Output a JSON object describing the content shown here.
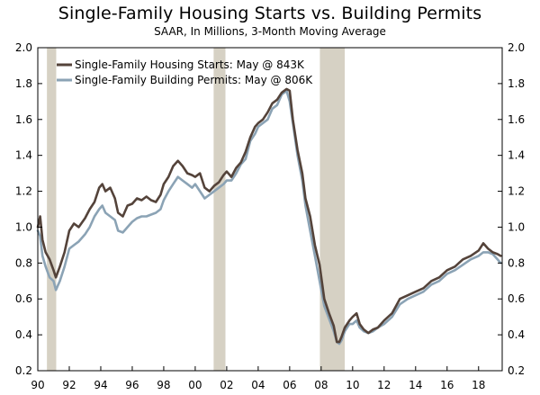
{
  "chart_data": {
    "type": "line",
    "title": "Single-Family Housing Starts vs. Building Permits",
    "subtitle": "SAAR, In Millions, 3-Month Moving Average",
    "xlabel": "",
    "ylabel": "",
    "xlim": [
      1990,
      2019.5
    ],
    "ylim": [
      0.2,
      2.0
    ],
    "y_ticks": [
      0.2,
      0.4,
      0.6,
      0.8,
      1.0,
      1.2,
      1.4,
      1.6,
      1.8,
      2.0
    ],
    "y_tick_labels": [
      "0.2",
      "0.4",
      "0.6",
      "0.8",
      "1.0",
      "1.2",
      "1.4",
      "1.6",
      "1.8",
      "2.0"
    ],
    "x_ticks": [
      1990,
      1992,
      1994,
      1996,
      1998,
      2000,
      2002,
      2004,
      2006,
      2008,
      2010,
      2012,
      2014,
      2016,
      2018
    ],
    "x_tick_labels": [
      "90",
      "92",
      "94",
      "96",
      "98",
      "00",
      "02",
      "04",
      "06",
      "08",
      "10",
      "12",
      "14",
      "16",
      "18"
    ],
    "grid": false,
    "legend_position": "top-left",
    "recessions": [
      [
        1990.58,
        1991.17
      ],
      [
        2001.17,
        2001.92
      ],
      [
        2007.92,
        2009.5
      ]
    ],
    "colors": {
      "starts": "#54433a",
      "permits": "#8ba3b5",
      "recession": "#d6d1c4"
    },
    "series": [
      {
        "name": "Single-Family Housing Starts: May @ 843K",
        "x": [
          1990,
          1990.15,
          1990.3,
          1990.5,
          1990.75,
          1991,
          1991.15,
          1991.4,
          1991.7,
          1992,
          1992.3,
          1992.6,
          1993,
          1993.3,
          1993.6,
          1993.9,
          1994.1,
          1994.3,
          1994.6,
          1994.9,
          1995.1,
          1995.4,
          1995.7,
          1996,
          1996.3,
          1996.6,
          1996.9,
          1997.2,
          1997.5,
          1997.8,
          1998,
          1998.3,
          1998.6,
          1998.9,
          1999.2,
          1999.5,
          1999.8,
          2000,
          2000.3,
          2000.6,
          2000.9,
          2001.2,
          2001.5,
          2001.8,
          2002,
          2002.3,
          2002.6,
          2002.9,
          2003.2,
          2003.5,
          2003.8,
          2004,
          2004.3,
          2004.6,
          2004.9,
          2005.2,
          2005.5,
          2005.8,
          2006,
          2006.2,
          2006.5,
          2006.8,
          2007,
          2007.3,
          2007.6,
          2007.9,
          2008.2,
          2008.5,
          2008.8,
          2009,
          2009.15,
          2009.3,
          2009.5,
          2009.8,
          2010,
          2010.25,
          2010.45,
          2010.7,
          2011,
          2011.3,
          2011.6,
          2012,
          2012.5,
          2013,
          2013.5,
          2014,
          2014.5,
          2015,
          2015.5,
          2016,
          2016.5,
          2017,
          2017.5,
          2018,
          2018.3,
          2018.6,
          2018.9,
          2019.2,
          2019.4
        ],
        "values": [
          1.0,
          1.06,
          0.93,
          0.86,
          0.82,
          0.76,
          0.72,
          0.78,
          0.86,
          0.98,
          1.02,
          1.0,
          1.05,
          1.1,
          1.14,
          1.22,
          1.24,
          1.2,
          1.22,
          1.16,
          1.08,
          1.06,
          1.12,
          1.13,
          1.16,
          1.15,
          1.17,
          1.15,
          1.14,
          1.18,
          1.24,
          1.28,
          1.34,
          1.37,
          1.34,
          1.3,
          1.29,
          1.28,
          1.3,
          1.22,
          1.2,
          1.23,
          1.25,
          1.29,
          1.31,
          1.28,
          1.33,
          1.36,
          1.42,
          1.5,
          1.56,
          1.58,
          1.6,
          1.64,
          1.69,
          1.71,
          1.75,
          1.77,
          1.76,
          1.6,
          1.43,
          1.3,
          1.16,
          1.06,
          0.9,
          0.79,
          0.6,
          0.52,
          0.45,
          0.36,
          0.36,
          0.39,
          0.44,
          0.48,
          0.5,
          0.52,
          0.46,
          0.43,
          0.41,
          0.43,
          0.44,
          0.48,
          0.52,
          0.6,
          0.62,
          0.64,
          0.66,
          0.7,
          0.72,
          0.76,
          0.78,
          0.82,
          0.84,
          0.87,
          0.91,
          0.88,
          0.86,
          0.85,
          0.84
        ]
      },
      {
        "name": "Single-Family Building Permits: May @ 806K",
        "x": [
          1990,
          1990.15,
          1990.3,
          1990.5,
          1990.75,
          1991,
          1991.15,
          1991.4,
          1991.7,
          1992,
          1992.3,
          1992.6,
          1993,
          1993.3,
          1993.6,
          1993.9,
          1994.1,
          1994.3,
          1994.6,
          1994.9,
          1995.1,
          1995.4,
          1995.7,
          1996,
          1996.3,
          1996.6,
          1996.9,
          1997.2,
          1997.5,
          1997.8,
          1998,
          1998.3,
          1998.6,
          1998.9,
          1999.2,
          1999.5,
          1999.8,
          2000,
          2000.3,
          2000.6,
          2000.9,
          2001.2,
          2001.5,
          2001.8,
          2002,
          2002.3,
          2002.6,
          2002.9,
          2003.2,
          2003.5,
          2003.8,
          2004,
          2004.3,
          2004.6,
          2004.9,
          2005.2,
          2005.5,
          2005.8,
          2006,
          2006.2,
          2006.5,
          2006.8,
          2007,
          2007.3,
          2007.6,
          2007.9,
          2008.2,
          2008.5,
          2008.8,
          2009,
          2009.15,
          2009.3,
          2009.5,
          2009.8,
          2010,
          2010.25,
          2010.45,
          2010.7,
          2011,
          2011.3,
          2011.6,
          2012,
          2012.5,
          2013,
          2013.5,
          2014,
          2014.5,
          2015,
          2015.5,
          2016,
          2016.5,
          2017,
          2017.5,
          2018,
          2018.3,
          2018.6,
          2018.9,
          2019.2,
          2019.4
        ],
        "values": [
          0.98,
          0.95,
          0.84,
          0.78,
          0.72,
          0.7,
          0.65,
          0.7,
          0.78,
          0.88,
          0.9,
          0.92,
          0.96,
          1.0,
          1.06,
          1.1,
          1.12,
          1.08,
          1.06,
          1.04,
          0.98,
          0.97,
          1.0,
          1.03,
          1.05,
          1.06,
          1.06,
          1.07,
          1.08,
          1.1,
          1.15,
          1.2,
          1.24,
          1.28,
          1.26,
          1.24,
          1.22,
          1.24,
          1.2,
          1.16,
          1.18,
          1.2,
          1.22,
          1.24,
          1.26,
          1.26,
          1.3,
          1.35,
          1.38,
          1.48,
          1.52,
          1.56,
          1.58,
          1.6,
          1.66,
          1.68,
          1.74,
          1.76,
          1.7,
          1.58,
          1.4,
          1.26,
          1.12,
          0.98,
          0.84,
          0.7,
          0.56,
          0.49,
          0.42,
          0.36,
          0.35,
          0.37,
          0.42,
          0.46,
          0.46,
          0.48,
          0.44,
          0.42,
          0.41,
          0.42,
          0.44,
          0.46,
          0.5,
          0.57,
          0.6,
          0.62,
          0.64,
          0.68,
          0.7,
          0.74,
          0.76,
          0.79,
          0.82,
          0.84,
          0.86,
          0.86,
          0.85,
          0.82,
          0.8
        ]
      }
    ]
  }
}
